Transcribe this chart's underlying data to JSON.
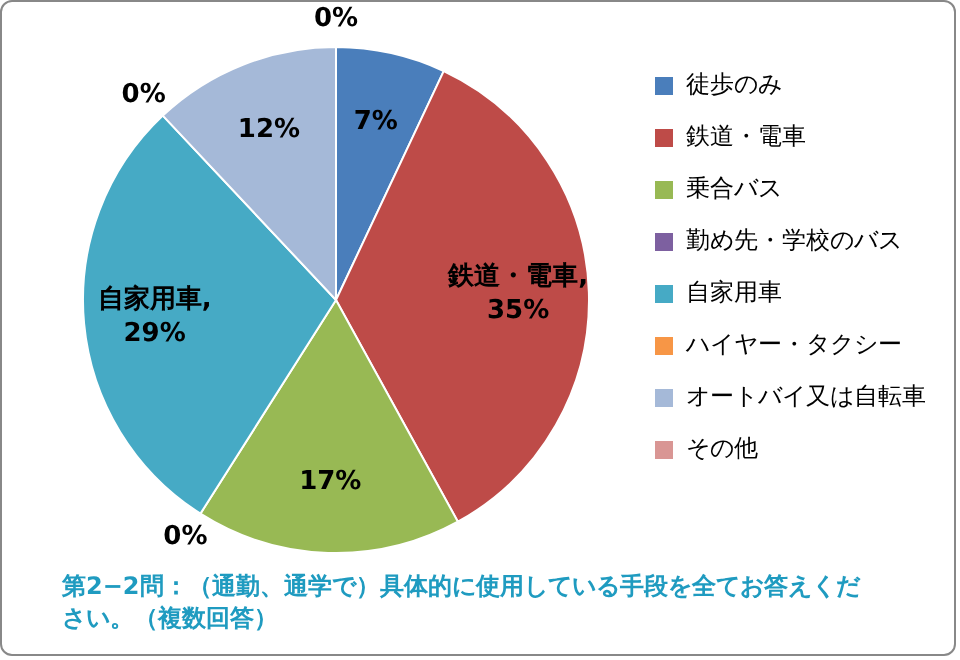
{
  "chart_data": {
    "type": "pie",
    "categories": [
      "徒歩のみ",
      "鉄道・電車",
      "乗合バス",
      "勤め先・学校のバス",
      "自家用車",
      "ハイヤー・タクシー",
      "オートバイ又は自転車",
      "その他"
    ],
    "values": [
      7,
      35,
      17,
      0,
      29,
      0,
      12,
      0
    ],
    "colors": [
      "#4a7ebb",
      "#be4b48",
      "#98b954",
      "#7d60a0",
      "#46aac5",
      "#f79646",
      "#a5b9d8",
      "#d99694"
    ],
    "value_labels": [
      "7%",
      "鉄道・電車,\n35%",
      "17%",
      "0%",
      "自家用車,\n29%",
      "0%",
      "12%",
      "0%"
    ],
    "legend": "right",
    "annotations": [
      "第2−2問：（通勤、通学で）具体的に使用している手段を全てお答えください。（複数回答）"
    ]
  }
}
